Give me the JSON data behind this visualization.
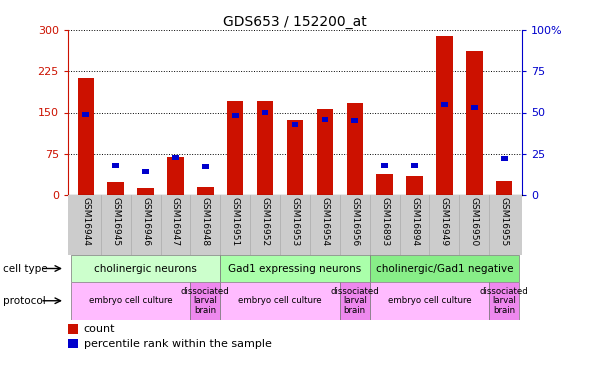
{
  "title": "GDS653 / 152200_at",
  "samples": [
    "GSM16944",
    "GSM16945",
    "GSM16946",
    "GSM16947",
    "GSM16948",
    "GSM16951",
    "GSM16952",
    "GSM16953",
    "GSM16954",
    "GSM16956",
    "GSM16893",
    "GSM16894",
    "GSM16949",
    "GSM16950",
    "GSM16955"
  ],
  "counts": [
    213,
    24,
    13,
    70,
    14,
    170,
    170,
    137,
    157,
    168,
    38,
    34,
    290,
    262,
    25
  ],
  "percentiles": [
    49,
    18,
    14,
    23,
    17,
    48,
    50,
    43,
    46,
    45,
    18,
    18,
    55,
    53,
    22
  ],
  "ylim_left": [
    0,
    300
  ],
  "ylim_right": [
    0,
    100
  ],
  "yticks_left": [
    0,
    75,
    150,
    225,
    300
  ],
  "yticks_right": [
    0,
    25,
    50,
    75,
    100
  ],
  "cell_type_groups": [
    {
      "label": "cholinergic neurons",
      "start": 0,
      "end": 5,
      "color": "#ccffcc"
    },
    {
      "label": "Gad1 expressing neurons",
      "start": 5,
      "end": 10,
      "color": "#aaffaa"
    },
    {
      "label": "cholinergic/Gad1 negative",
      "start": 10,
      "end": 15,
      "color": "#88ee88"
    }
  ],
  "protocol_groups": [
    {
      "label": "embryo cell culture",
      "start": 0,
      "end": 4,
      "color": "#ffbbff"
    },
    {
      "label": "dissociated\nlarval\nbrain",
      "start": 4,
      "end": 5,
      "color": "#ee88ee"
    },
    {
      "label": "embryo cell culture",
      "start": 5,
      "end": 9,
      "color": "#ffbbff"
    },
    {
      "label": "dissociated\nlarval\nbrain",
      "start": 9,
      "end": 10,
      "color": "#ee88ee"
    },
    {
      "label": "embryo cell culture",
      "start": 10,
      "end": 14,
      "color": "#ffbbff"
    },
    {
      "label": "dissociated\nlarval\nbrain",
      "start": 14,
      "end": 15,
      "color": "#ee88ee"
    }
  ],
  "bar_color": "#cc1100",
  "dot_color": "#0000cc",
  "left_tick_color": "#cc1100",
  "right_tick_color": "#0000cc",
  "legend_count_color": "#cc1100",
  "legend_pct_color": "#0000cc",
  "right_tick_labels": [
    "0",
    "25",
    "50",
    "75",
    "100%"
  ]
}
